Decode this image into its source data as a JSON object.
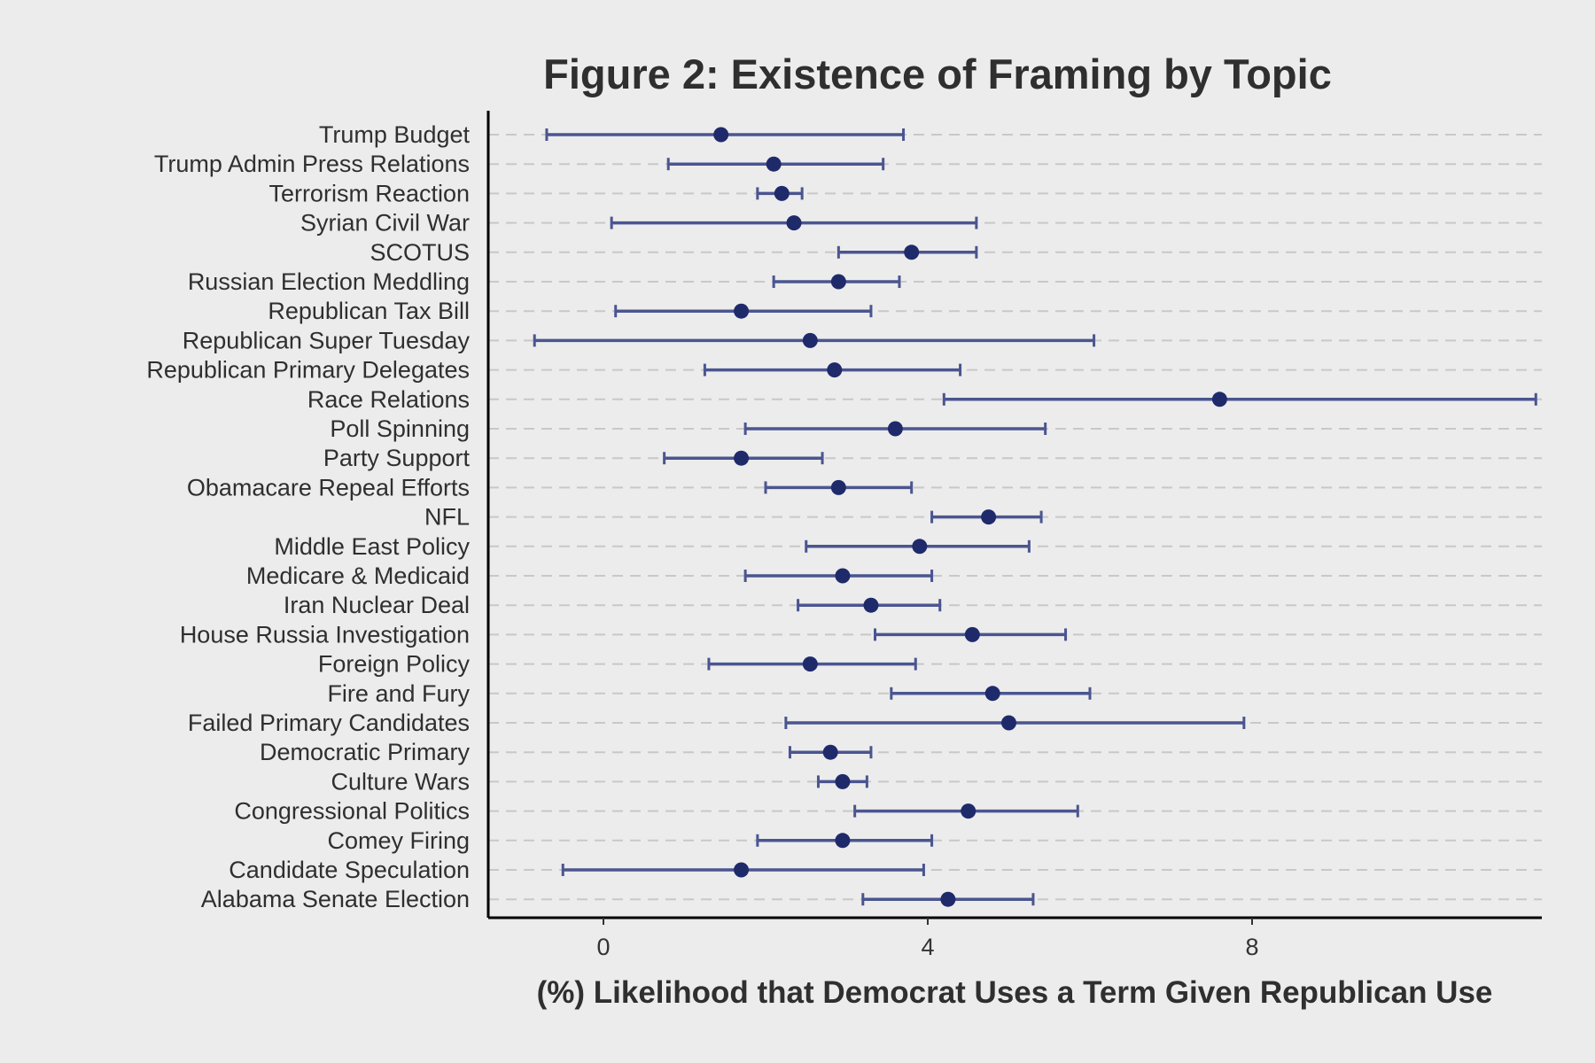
{
  "chart_data": {
    "type": "errorbar",
    "title": "Figure 2: Existence of Framing by Topic",
    "xlabel": "(%) Likelihood that Democrat Uses a Term Given Republican Use",
    "ylabel": "",
    "xlim": [
      -1.4,
      11.6
    ],
    "xticks": [
      0,
      4,
      8
    ],
    "grid": "horizontal dashed",
    "colors": {
      "point": "#1f2a6b",
      "errorbar": "#4a5590",
      "grid": "#c8c8c8",
      "background": "#ececec",
      "axis": "#000000"
    },
    "categories": [
      "Trump Budget",
      "Trump Admin Press Relations",
      "Terrorism Reaction",
      "Syrian Civil War",
      "SCOTUS",
      "Russian Election Meddling",
      "Republican Tax Bill",
      "Republican Super Tuesday",
      "Republican Primary Delegates",
      "Race Relations",
      "Poll Spinning",
      "Party Support",
      "Obamacare Repeal Efforts",
      "NFL",
      "Middle East Policy",
      "Medicare & Medicaid",
      "Iran Nuclear Deal",
      "House Russia Investigation",
      "Foreign Policy",
      "Fire and Fury",
      "Failed Primary Candidates",
      "Democratic Primary",
      "Culture Wars",
      "Congressional Politics",
      "Comey Firing",
      "Candidate Speculation",
      "Alabama Senate Election"
    ],
    "estimates": [
      1.45,
      2.1,
      2.2,
      2.35,
      3.8,
      2.9,
      1.7,
      2.55,
      2.85,
      7.6,
      3.6,
      1.7,
      2.9,
      4.75,
      3.9,
      2.95,
      3.3,
      4.55,
      2.55,
      4.8,
      5.0,
      2.8,
      2.95,
      4.5,
      2.95,
      1.7,
      4.25
    ],
    "lower": [
      -0.7,
      0.8,
      1.9,
      0.1,
      2.9,
      2.1,
      0.15,
      -0.85,
      1.25,
      4.2,
      1.75,
      0.75,
      2.0,
      4.05,
      2.5,
      1.75,
      2.4,
      3.35,
      1.3,
      3.55,
      2.25,
      2.3,
      2.65,
      3.1,
      1.9,
      -0.5,
      3.2
    ],
    "upper": [
      3.7,
      3.45,
      2.45,
      4.6,
      4.6,
      3.65,
      3.3,
      6.05,
      4.4,
      11.5,
      5.45,
      2.7,
      3.8,
      5.4,
      5.25,
      4.05,
      4.15,
      5.7,
      3.85,
      6.0,
      7.9,
      3.3,
      3.25,
      5.85,
      4.05,
      3.95,
      5.3
    ]
  }
}
